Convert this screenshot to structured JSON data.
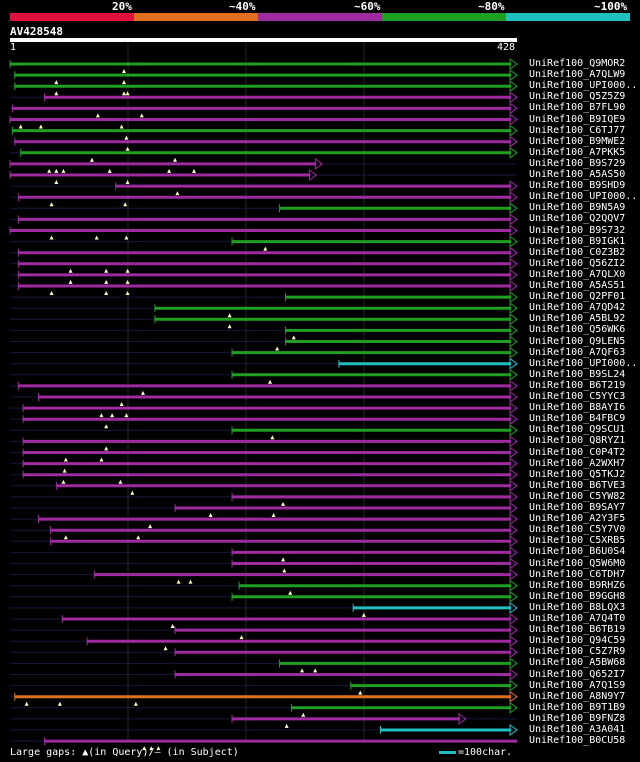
{
  "legend": {
    "labels": [
      "20%",
      "~40%",
      "~60%",
      "~80%",
      "~100%"
    ],
    "colors": [
      "#e0103c",
      "#e07020",
      "#a02aa0",
      "#20a020",
      "#20c0c0"
    ]
  },
  "query": {
    "id": "AV428548",
    "start": "1",
    "end": "428"
  },
  "footer": {
    "text": "Large gaps: ▲(in Query)/— (in Subject)",
    "scale": "=100char."
  },
  "chart_data": {
    "type": "alignment-overview",
    "query_length": 428,
    "hits": [
      {
        "name": "UniRef100_Q9MOR2",
        "start": 1,
        "end": 428,
        "color": "green",
        "arrow": true,
        "tris": [
          97
        ]
      },
      {
        "name": "UniRef100_A7QLW9",
        "start": 5,
        "end": 428,
        "color": "green",
        "arrow": true,
        "tris": [
          40,
          97
        ]
      },
      {
        "name": "UniRef100_UPI000..",
        "start": 5,
        "end": 428,
        "color": "green",
        "arrow": true,
        "tris": [
          40,
          97,
          100
        ]
      },
      {
        "name": "UniRef100_Q5Z5Z9",
        "start": 30,
        "end": 428,
        "color": "purple",
        "arrow": true,
        "tris": []
      },
      {
        "name": "UniRef100_B7FL90",
        "start": 3,
        "end": 428,
        "color": "purple",
        "arrow": true,
        "tris": [
          75,
          112
        ]
      },
      {
        "name": "UniRef100_B9IQE9",
        "start": 1,
        "end": 428,
        "color": "purple",
        "arrow": true,
        "tris": [
          10,
          27,
          95
        ]
      },
      {
        "name": "UniRef100_C6TJ77",
        "start": 3,
        "end": 428,
        "color": "green",
        "arrow": true,
        "tris": [
          99
        ]
      },
      {
        "name": "UniRef100_B9MWE2",
        "start": 5,
        "end": 428,
        "color": "purple",
        "arrow": true,
        "tris": [
          100
        ]
      },
      {
        "name": "UniRef100_A7PKK5",
        "start": 10,
        "end": 428,
        "color": "green",
        "arrow": true,
        "tris": [
          70,
          140
        ]
      },
      {
        "name": "UniRef100_B9S729",
        "start": 1,
        "end": 264,
        "color": "purple",
        "arrow": true,
        "tris": [
          34,
          40,
          46,
          85,
          135,
          156
        ]
      },
      {
        "name": "UniRef100_A5AS50",
        "start": 1,
        "end": 259,
        "color": "purple",
        "arrow": true,
        "tris": [
          40,
          100
        ]
      },
      {
        "name": "UniRef100_B9SHD9",
        "start": 90,
        "end": 428,
        "color": "purple",
        "arrow": true,
        "tris": [
          142
        ]
      },
      {
        "name": "UniRef100_UPI000..",
        "start": 8,
        "end": 428,
        "color": "purple",
        "arrow": true,
        "tris": [
          36,
          98
        ]
      },
      {
        "name": "UniRef100_B9N5A9",
        "start": 228,
        "end": 428,
        "color": "green",
        "arrow": true,
        "tris": []
      },
      {
        "name": "UniRef100_Q2QQV7",
        "start": 8,
        "end": 428,
        "color": "purple",
        "arrow": true,
        "tris": []
      },
      {
        "name": "UniRef100_B9S732",
        "start": 1,
        "end": 428,
        "color": "purple",
        "arrow": true,
        "tris": [
          36,
          74,
          99
        ]
      },
      {
        "name": "UniRef100_B9IGK1",
        "start": 188,
        "end": 428,
        "color": "green",
        "arrow": true,
        "tris": [
          216
        ]
      },
      {
        "name": "UniRef100_C0Z3B2",
        "start": 8,
        "end": 428,
        "color": "purple",
        "arrow": true,
        "tris": []
      },
      {
        "name": "UniRef100_Q56ZI2",
        "start": 8,
        "end": 428,
        "color": "purple",
        "arrow": true,
        "tris": [
          52,
          82,
          100
        ]
      },
      {
        "name": "UniRef100_A7QLX0",
        "start": 8,
        "end": 428,
        "color": "purple",
        "arrow": true,
        "tris": [
          52,
          82,
          100
        ]
      },
      {
        "name": "UniRef100_A5AS51",
        "start": 8,
        "end": 428,
        "color": "purple",
        "arrow": true,
        "tris": [
          36,
          82,
          100
        ]
      },
      {
        "name": "UniRef100_Q2PF01",
        "start": 233,
        "end": 428,
        "color": "green",
        "arrow": true,
        "tris": []
      },
      {
        "name": "UniRef100_A7QD42",
        "start": 123,
        "end": 428,
        "color": "green",
        "arrow": true,
        "tris": [
          186
        ]
      },
      {
        "name": "UniRef100_A5BL92",
        "start": 123,
        "end": 428,
        "color": "green",
        "arrow": true,
        "tris": [
          186
        ]
      },
      {
        "name": "UniRef100_Q56WK6",
        "start": 233,
        "end": 428,
        "color": "green",
        "arrow": true,
        "tris": [
          240
        ]
      },
      {
        "name": "UniRef100_Q9LEN5",
        "start": 233,
        "end": 428,
        "color": "green",
        "arrow": true,
        "tris": [
          226
        ]
      },
      {
        "name": "UniRef100_A7QF63",
        "start": 188,
        "end": 428,
        "color": "green",
        "arrow": true,
        "tris": []
      },
      {
        "name": "UniRef100_UPI000..",
        "start": 278,
        "end": 428,
        "color": "cyan",
        "arrow": true,
        "tris": []
      },
      {
        "name": "UniRef100_B9SL24",
        "start": 188,
        "end": 428,
        "color": "green",
        "arrow": true,
        "tris": [
          220
        ]
      },
      {
        "name": "UniRef100_B6T219",
        "start": 8,
        "end": 428,
        "color": "purple",
        "arrow": true,
        "tris": [
          113
        ]
      },
      {
        "name": "UniRef100_C5YYC3",
        "start": 25,
        "end": 428,
        "color": "purple",
        "arrow": true,
        "tris": [
          95
        ]
      },
      {
        "name": "UniRef100_B8AYI6",
        "start": 12,
        "end": 428,
        "color": "purple",
        "arrow": true,
        "tris": [
          78,
          87,
          99
        ]
      },
      {
        "name": "UniRef100_B4FBC9",
        "start": 12,
        "end": 428,
        "color": "purple",
        "arrow": true,
        "tris": [
          82
        ]
      },
      {
        "name": "UniRef100_Q9SCU1",
        "start": 188,
        "end": 428,
        "color": "green",
        "arrow": true,
        "tris": [
          222
        ]
      },
      {
        "name": "UniRef100_Q8RYZ1",
        "start": 12,
        "end": 428,
        "color": "purple",
        "arrow": true,
        "tris": [
          82
        ]
      },
      {
        "name": "UniRef100_C0P4T2",
        "start": 12,
        "end": 428,
        "color": "purple",
        "arrow": true,
        "tris": [
          48,
          78
        ]
      },
      {
        "name": "UniRef100_A2WXH7",
        "start": 12,
        "end": 428,
        "color": "purple",
        "arrow": true,
        "tris": [
          47
        ]
      },
      {
        "name": "UniRef100_Q5TKJ2",
        "start": 12,
        "end": 428,
        "color": "purple",
        "arrow": true,
        "tris": [
          46,
          94
        ]
      },
      {
        "name": "UniRef100_B6TVE3",
        "start": 40,
        "end": 428,
        "color": "purple",
        "arrow": true,
        "tris": [
          104
        ]
      },
      {
        "name": "UniRef100_C5YW82",
        "start": 188,
        "end": 428,
        "color": "purple",
        "arrow": true,
        "tris": [
          231
        ]
      },
      {
        "name": "UniRef100_B9SAY7",
        "start": 140,
        "end": 428,
        "color": "purple",
        "arrow": true,
        "tris": [
          170,
          223
        ]
      },
      {
        "name": "UniRef100_A2Y3F5",
        "start": 25,
        "end": 428,
        "color": "purple",
        "arrow": true,
        "tris": [
          119
        ]
      },
      {
        "name": "UniRef100_C5Y7V0",
        "start": 35,
        "end": 428,
        "color": "purple",
        "arrow": true,
        "tris": [
          48,
          109
        ]
      },
      {
        "name": "UniRef100_C5XRB5",
        "start": 35,
        "end": 428,
        "color": "purple",
        "arrow": true,
        "tris": []
      },
      {
        "name": "UniRef100_B6U0S4",
        "start": 188,
        "end": 428,
        "color": "purple",
        "arrow": true,
        "tris": [
          231
        ]
      },
      {
        "name": "UniRef100_Q5W6M0",
        "start": 188,
        "end": 428,
        "color": "purple",
        "arrow": true,
        "tris": [
          232
        ]
      },
      {
        "name": "UniRef100_C6TDH7",
        "start": 72,
        "end": 428,
        "color": "purple",
        "arrow": true,
        "tris": [
          143,
          153
        ]
      },
      {
        "name": "UniRef100_B9RHZ6",
        "start": 194,
        "end": 428,
        "color": "green",
        "arrow": true,
        "tris": [
          237
        ]
      },
      {
        "name": "UniRef100_B9GGH8",
        "start": 188,
        "end": 428,
        "color": "green",
        "arrow": true,
        "tris": []
      },
      {
        "name": "UniRef100_B8LQX3",
        "start": 290,
        "end": 428,
        "color": "cyan",
        "arrow": true,
        "tris": [
          299
        ]
      },
      {
        "name": "UniRef100_A7Q4T0",
        "start": 45,
        "end": 428,
        "color": "purple",
        "arrow": true,
        "tris": [
          138
        ]
      },
      {
        "name": "UniRef100_B6TB19",
        "start": 140,
        "end": 428,
        "color": "purple",
        "arrow": true,
        "tris": [
          196
        ]
      },
      {
        "name": "UniRef100_Q94C59",
        "start": 66,
        "end": 428,
        "color": "purple",
        "arrow": true,
        "tris": [
          132
        ]
      },
      {
        "name": "UniRef100_C5Z7R9",
        "start": 140,
        "end": 428,
        "color": "purple",
        "arrow": true,
        "tris": []
      },
      {
        "name": "UniRef100_A5BW68",
        "start": 228,
        "end": 428,
        "color": "green",
        "arrow": true,
        "tris": [
          247,
          258
        ]
      },
      {
        "name": "UniRef100_Q652I7",
        "start": 140,
        "end": 428,
        "color": "purple",
        "arrow": true,
        "tris": []
      },
      {
        "name": "UniRef100_A7Q1S9",
        "start": 288,
        "end": 428,
        "color": "green",
        "arrow": true,
        "tris": [
          296
        ]
      },
      {
        "name": "UniRef100_A8N9Y7",
        "start": 5,
        "end": 428,
        "color": "orange",
        "arrow": true,
        "tris": [
          15,
          43,
          107
        ]
      },
      {
        "name": "UniRef100_B9T1B9",
        "start": 238,
        "end": 428,
        "color": "green",
        "arrow": true,
        "tris": [
          248
        ]
      },
      {
        "name": "UniRef100_B9FNZ8",
        "start": 188,
        "end": 385,
        "color": "purple",
        "arrow": true,
        "tris": [
          234
        ]
      },
      {
        "name": "UniRef100_A3A041",
        "start": 313,
        "end": 428,
        "color": "cyan",
        "arrow": true,
        "tris": []
      },
      {
        "name": "UniRef100_B0CU58",
        "start": 30,
        "end": 428,
        "color": "purple",
        "arrow": false,
        "tris": [
          114,
          120,
          126
        ]
      }
    ]
  }
}
